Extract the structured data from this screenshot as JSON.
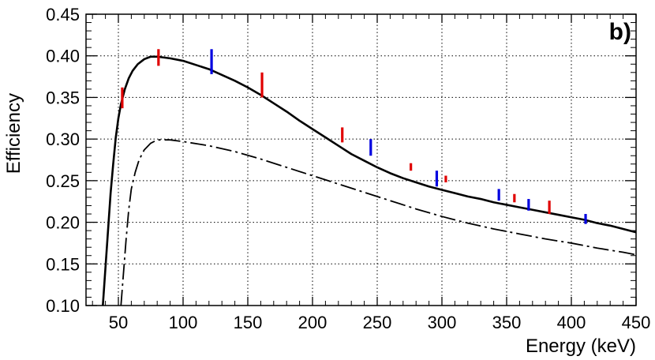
{
  "chart_data": {
    "type": "line",
    "title": "",
    "panel_label": "b)",
    "xlabel": "Energy (keV)",
    "ylabel": "Efficiency",
    "xlim": [
      25,
      450
    ],
    "ylim": [
      0.1,
      0.45
    ],
    "grid": true,
    "x_ticks": [
      50,
      100,
      150,
      200,
      250,
      300,
      350,
      400,
      450
    ],
    "x_tick_labels": [
      "50",
      "100",
      "150",
      "200",
      "250",
      "300",
      "350",
      "400",
      "450"
    ],
    "y_ticks": [
      0.1,
      0.15,
      0.2,
      0.25,
      0.3,
      0.35,
      0.4,
      0.45
    ],
    "y_tick_labels": [
      "0.10",
      "0.15",
      "0.20",
      "0.25",
      "0.30",
      "0.35",
      "0.40",
      "0.45"
    ],
    "series": [
      {
        "name": "fit-solid",
        "style": "solid",
        "color": "#000000",
        "x": [
          38,
          40,
          42,
          44,
          46,
          48,
          50,
          52,
          55,
          58,
          61,
          65,
          70,
          75,
          80,
          90,
          100,
          110,
          120,
          130,
          140,
          150,
          160,
          170,
          180,
          190,
          200,
          210,
          220,
          230,
          240,
          250,
          260,
          270,
          280,
          290,
          300,
          310,
          320,
          330,
          340,
          350,
          360,
          370,
          380,
          390,
          400,
          410,
          420,
          430,
          440,
          450
        ],
        "y": [
          0.1,
          0.145,
          0.19,
          0.235,
          0.27,
          0.302,
          0.325,
          0.342,
          0.36,
          0.373,
          0.382,
          0.39,
          0.396,
          0.399,
          0.399,
          0.397,
          0.394,
          0.389,
          0.384,
          0.377,
          0.37,
          0.362,
          0.353,
          0.343,
          0.333,
          0.322,
          0.312,
          0.302,
          0.292,
          0.282,
          0.274,
          0.266,
          0.259,
          0.253,
          0.248,
          0.243,
          0.239,
          0.235,
          0.231,
          0.228,
          0.224,
          0.221,
          0.218,
          0.215,
          0.212,
          0.209,
          0.206,
          0.203,
          0.199,
          0.196,
          0.192,
          0.188
        ]
      },
      {
        "name": "fit-dashdot",
        "style": "dashdot",
        "color": "#000000",
        "x": [
          52,
          54,
          56,
          58,
          60,
          63,
          66,
          70,
          75,
          80,
          90,
          100,
          120,
          140,
          160,
          180,
          200,
          220,
          240,
          260,
          280,
          300,
          320,
          340,
          360,
          380,
          400,
          420,
          440,
          450
        ],
        "y": [
          0.1,
          0.14,
          0.18,
          0.215,
          0.24,
          0.26,
          0.275,
          0.287,
          0.295,
          0.299,
          0.299,
          0.297,
          0.292,
          0.285,
          0.276,
          0.266,
          0.256,
          0.246,
          0.236,
          0.226,
          0.216,
          0.207,
          0.199,
          0.192,
          0.186,
          0.18,
          0.175,
          0.169,
          0.164,
          0.161
        ]
      }
    ],
    "error_bars": [
      {
        "x": 53,
        "y_low": 0.337,
        "y_high": 0.362,
        "color": "#e00000"
      },
      {
        "x": 81,
        "y_low": 0.388,
        "y_high": 0.408,
        "color": "#e00000"
      },
      {
        "x": 122,
        "y_low": 0.378,
        "y_high": 0.408,
        "color": "#0000e0"
      },
      {
        "x": 161,
        "y_low": 0.35,
        "y_high": 0.38,
        "color": "#e00000"
      },
      {
        "x": 223,
        "y_low": 0.296,
        "y_high": 0.314,
        "color": "#e00000"
      },
      {
        "x": 245,
        "y_low": 0.28,
        "y_high": 0.3,
        "color": "#0000e0"
      },
      {
        "x": 276,
        "y_low": 0.262,
        "y_high": 0.271,
        "color": "#e00000"
      },
      {
        "x": 296,
        "y_low": 0.243,
        "y_high": 0.262,
        "color": "#0000e0"
      },
      {
        "x": 303,
        "y_low": 0.248,
        "y_high": 0.256,
        "color": "#e00000"
      },
      {
        "x": 344,
        "y_low": 0.226,
        "y_high": 0.24,
        "color": "#0000e0"
      },
      {
        "x": 356,
        "y_low": 0.224,
        "y_high": 0.234,
        "color": "#e00000"
      },
      {
        "x": 367,
        "y_low": 0.214,
        "y_high": 0.228,
        "color": "#0000e0"
      },
      {
        "x": 383,
        "y_low": 0.21,
        "y_high": 0.226,
        "color": "#e00000"
      },
      {
        "x": 411,
        "y_low": 0.198,
        "y_high": 0.21,
        "color": "#0000e0"
      }
    ]
  }
}
